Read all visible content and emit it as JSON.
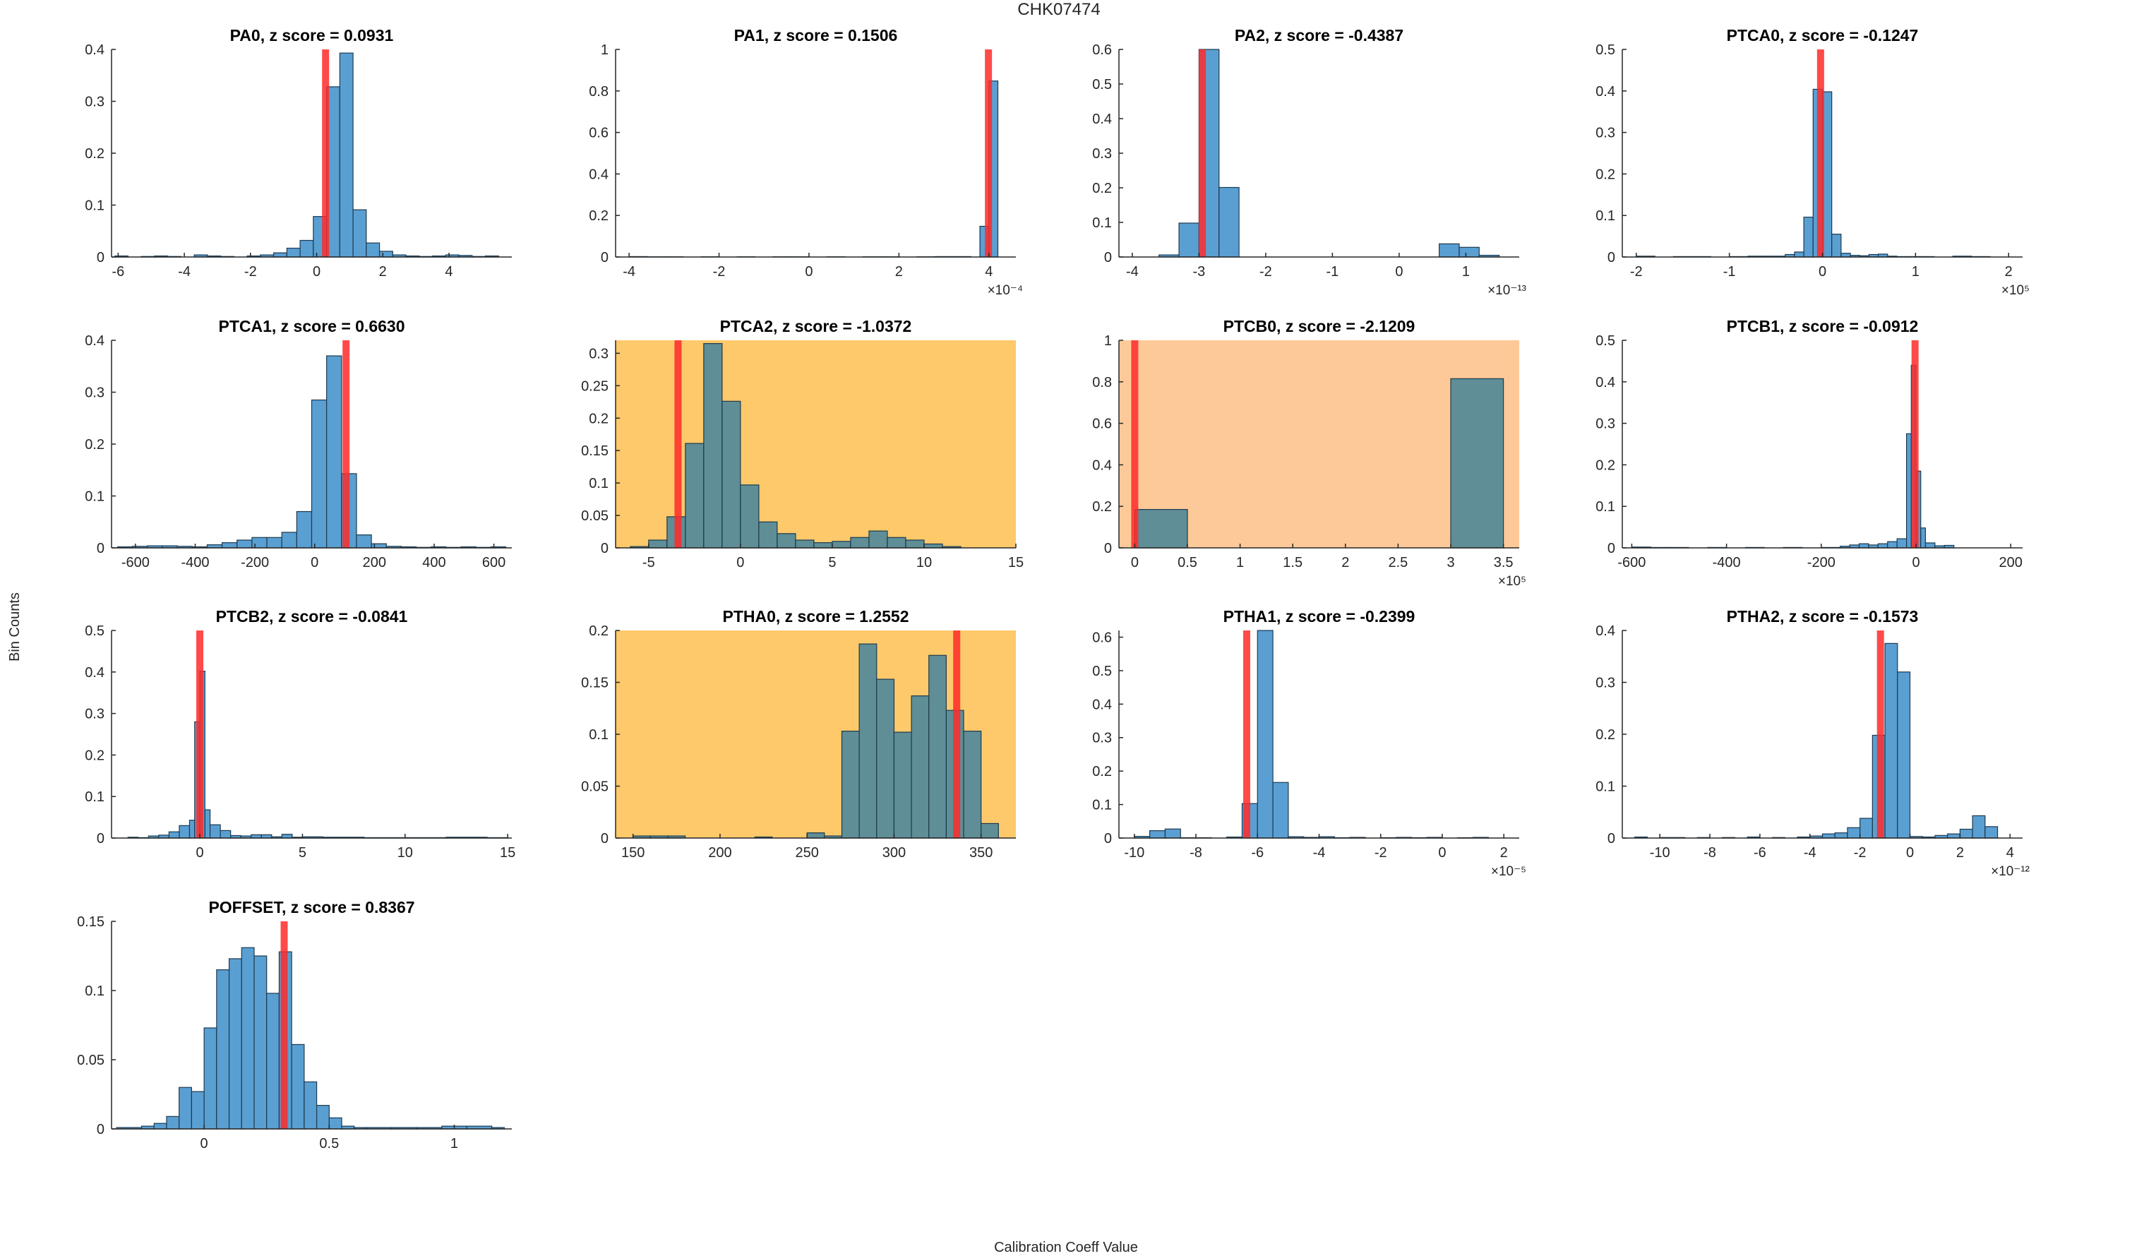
{
  "figure": {
    "title": "CHK07474",
    "xlabel": "Calibration Coeff Value",
    "ylabel": "Bin Counts"
  },
  "colors": {
    "bar_fill": "#5a9fd2",
    "bar_fill_flagged": "#5f8e96",
    "bar_edge": "#1c3a4f",
    "marker": "#ff2a2a",
    "bg_warn": "#fdc96a",
    "bg_alert": "#fec998",
    "axis": "#262626"
  },
  "chart_data": [
    {
      "type": "bar",
      "name": "PA0",
      "title": "PA0, z score = 0.0931",
      "background": "none",
      "xlim": [
        -6.2,
        5.9
      ],
      "ylim": [
        0,
        0.4
      ],
      "xticks": [
        -6,
        -4,
        -2,
        0,
        2,
        4
      ],
      "xtick_labels": [
        "-6",
        "-4",
        "-2",
        "0",
        "2",
        "4"
      ],
      "yticks": [
        0,
        0.1,
        0.2,
        0.3,
        0.4
      ],
      "ytick_labels": [
        "0",
        "0.1",
        "0.2",
        "0.3",
        "0.4"
      ],
      "x_multiplier": null,
      "bin_edges": [
        -6.1,
        -5.7,
        -5.3,
        -4.9,
        -4.5,
        -4.1,
        -3.7,
        -3.3,
        -2.9,
        -2.5,
        -2.1,
        -1.7,
        -1.3,
        -0.9,
        -0.5,
        -0.1,
        0.3,
        0.7,
        1.1,
        1.5,
        1.9,
        2.3,
        2.7,
        3.1,
        3.5,
        3.9,
        4.3,
        4.7,
        5.1,
        5.5
      ],
      "counts": [
        0.002,
        0,
        0.001,
        0.002,
        0.001,
        0,
        0.004,
        0.002,
        0.001,
        0,
        0.002,
        0.004,
        0.008,
        0.017,
        0.032,
        0.078,
        0.328,
        0.393,
        0.091,
        0.027,
        0.011,
        0.004,
        0.002,
        0.001,
        0.002,
        0.004,
        0.003,
        0.001,
        0.002
      ],
      "marker": 0.27
    },
    {
      "type": "bar",
      "name": "PA1",
      "title": "PA1, z score = 0.1506",
      "background": "none",
      "xlim": [
        -4.3,
        4.6
      ],
      "ylim": [
        0,
        1
      ],
      "xticks": [
        -4,
        -2,
        0,
        2,
        4
      ],
      "xtick_labels": [
        "-4",
        "-2",
        "0",
        "2",
        "4"
      ],
      "yticks": [
        0,
        0.2,
        0.4,
        0.6,
        0.8,
        1
      ],
      "ytick_labels": [
        "0",
        "0.2",
        "0.4",
        "0.6",
        "0.8",
        "1"
      ],
      "x_multiplier": "×10⁻⁴",
      "bin_edges": [
        -4.0,
        -3.6,
        -3.2,
        -2.8,
        -2.4,
        -2.0,
        -1.6,
        -1.2,
        -0.8,
        -0.4,
        0,
        0.4,
        0.8,
        1.2,
        1.6,
        2.0,
        2.4,
        2.8,
        3.2,
        3.6,
        3.8,
        4.0,
        4.2
      ],
      "counts": [
        0.002,
        0.001,
        0.001,
        0,
        0.001,
        0,
        0.001,
        0,
        0.001,
        0.001,
        0,
        0.001,
        0,
        0.001,
        0.001,
        0,
        0.001,
        0.002,
        0.002,
        0,
        0.148,
        0.848
      ],
      "marker": 3.99
    },
    {
      "type": "bar",
      "name": "PA2",
      "title": "PA2, z score = -0.4387",
      "background": "none",
      "xlim": [
        -4.2,
        1.8
      ],
      "ylim": [
        0,
        0.6
      ],
      "xticks": [
        -4,
        -3,
        -2,
        -1,
        0,
        1
      ],
      "xtick_labels": [
        "-4",
        "-3",
        "-2",
        "-1",
        "0",
        "1"
      ],
      "yticks": [
        0,
        0.1,
        0.2,
        0.3,
        0.4,
        0.5,
        0.6
      ],
      "ytick_labels": [
        "0",
        "0.1",
        "0.2",
        "0.3",
        "0.4",
        "0.5",
        "0.6"
      ],
      "x_multiplier": "×10⁻¹³",
      "bin_edges": [
        -3.6,
        -3.3,
        -3.0,
        -2.7,
        -2.4,
        -2.1,
        -1.8,
        -1.5,
        -1.2,
        -0.9,
        -0.6,
        -0.3,
        0,
        0.3,
        0.6,
        0.9,
        1.2,
        1.5
      ],
      "counts": [
        0.006,
        0.098,
        0.628,
        0.201,
        0,
        0,
        0,
        0,
        0,
        0,
        0,
        0,
        0,
        0,
        0.038,
        0.028,
        0.005
      ],
      "marker": -2.95
    },
    {
      "type": "bar",
      "name": "PTCA0",
      "title": "PTCA0, z score = -0.1247",
      "background": "none",
      "xlim": [
        -2.15,
        2.15
      ],
      "ylim": [
        0,
        0.5
      ],
      "xticks": [
        -2,
        -1,
        0,
        1,
        2
      ],
      "xtick_labels": [
        "-2",
        "-1",
        "0",
        "1",
        "2"
      ],
      "yticks": [
        0,
        0.1,
        0.2,
        0.3,
        0.4,
        0.5
      ],
      "ytick_labels": [
        "0",
        "0.1",
        "0.2",
        "0.3",
        "0.4",
        "0.5"
      ],
      "x_multiplier": "×10⁵",
      "bin_edges": [
        -2.0,
        -1.8,
        -1.6,
        -1.4,
        -1.2,
        -1.0,
        -0.8,
        -0.6,
        -0.4,
        -0.3,
        -0.2,
        -0.1,
        0,
        0.1,
        0.2,
        0.3,
        0.4,
        0.5,
        0.6,
        0.7,
        0.8,
        1.0,
        1.2,
        1.4,
        1.6,
        1.8,
        2.0
      ],
      "counts": [
        0.002,
        0,
        0.001,
        0.001,
        0,
        0.001,
        0.002,
        0.002,
        0.006,
        0.012,
        0.096,
        0.404,
        0.398,
        0.055,
        0.009,
        0.004,
        0.003,
        0.006,
        0.007,
        0.002,
        0.001,
        0.001,
        0,
        0.002,
        0.001,
        0
      ],
      "marker": -0.02
    },
    {
      "type": "bar",
      "name": "PTCA1",
      "title": "PTCA1, z score = 0.6630",
      "background": "none",
      "xlim": [
        -680,
        660
      ],
      "ylim": [
        0,
        0.4
      ],
      "xticks": [
        -600,
        -400,
        -200,
        0,
        200,
        400,
        600
      ],
      "xtick_labels": [
        "-600",
        "-400",
        "-200",
        "0",
        "200",
        "400",
        "600"
      ],
      "yticks": [
        0,
        0.1,
        0.2,
        0.3,
        0.4
      ],
      "ytick_labels": [
        "0",
        "0.1",
        "0.2",
        "0.3",
        "0.4"
      ],
      "x_multiplier": null,
      "bin_edges": [
        -660,
        -610,
        -560,
        -510,
        -460,
        -410,
        -360,
        -310,
        -260,
        -210,
        -160,
        -110,
        -60,
        -10,
        40,
        90,
        140,
        190,
        240,
        290,
        340,
        390,
        440,
        490,
        540,
        590,
        640
      ],
      "counts": [
        0.002,
        0.003,
        0.004,
        0.004,
        0.003,
        0.002,
        0.006,
        0.01,
        0.015,
        0.02,
        0.02,
        0.03,
        0.07,
        0.285,
        0.37,
        0.143,
        0.025,
        0.008,
        0.003,
        0.002,
        0.001,
        0.002,
        0.001,
        0.002,
        0.001,
        0.002
      ],
      "marker": 105
    },
    {
      "type": "bar",
      "name": "PTCA2",
      "title": "PTCA2, z score = -1.0372",
      "background": "warn",
      "xlim": [
        -6.8,
        15
      ],
      "ylim": [
        0,
        0.32
      ],
      "xticks": [
        -5,
        0,
        5,
        10,
        15
      ],
      "xtick_labels": [
        "-5",
        "0",
        "5",
        "10",
        "15"
      ],
      "yticks": [
        0,
        0.05,
        0.1,
        0.15,
        0.2,
        0.25,
        0.3
      ],
      "ytick_labels": [
        "0",
        "0.05",
        "0.1",
        "0.15",
        "0.2",
        "0.25",
        "0.3"
      ],
      "x_multiplier": null,
      "bin_edges": [
        -6,
        -5,
        -4,
        -3,
        -2,
        -1,
        0,
        1,
        2,
        3,
        4,
        5,
        6,
        7,
        8,
        9,
        10,
        11,
        12
      ],
      "counts": [
        0.002,
        0.012,
        0.048,
        0.161,
        0.315,
        0.226,
        0.097,
        0.04,
        0.022,
        0.012,
        0.008,
        0.01,
        0.016,
        0.026,
        0.016,
        0.012,
        0.006,
        0.002
      ],
      "marker": -3.4
    },
    {
      "type": "bar",
      "name": "PTCB0",
      "title": "PTCB0, z score = -2.1209",
      "background": "alert",
      "xlim": [
        -0.15,
        3.65
      ],
      "ylim": [
        0,
        1
      ],
      "xticks": [
        0,
        0.5,
        1,
        1.5,
        2,
        2.5,
        3,
        3.5
      ],
      "xtick_labels": [
        "0",
        "0.5",
        "1",
        "1.5",
        "2",
        "2.5",
        "3",
        "3.5"
      ],
      "yticks": [
        0,
        0.2,
        0.4,
        0.6,
        0.8,
        1
      ],
      "ytick_labels": [
        "0",
        "0.2",
        "0.4",
        "0.6",
        "0.8",
        "1"
      ],
      "x_multiplier": "×10⁵",
      "bin_edges": [
        0,
        0.5,
        1.0,
        1.5,
        2.0,
        2.5,
        3.0,
        3.5
      ],
      "counts": [
        0.185,
        0,
        0,
        0,
        0,
        0,
        0.815
      ],
      "marker": 0.0
    },
    {
      "type": "bar",
      "name": "PTCB1",
      "title": "PTCB1, z score = -0.0912",
      "background": "none",
      "xlim": [
        -620,
        225
      ],
      "ylim": [
        0,
        0.5
      ],
      "xticks": [
        -600,
        -400,
        -200,
        0,
        200
      ],
      "xtick_labels": [
        "-600",
        "-400",
        "-200",
        "0",
        "200"
      ],
      "yticks": [
        0,
        0.1,
        0.2,
        0.3,
        0.4,
        0.5
      ],
      "ytick_labels": [
        "0",
        "0.1",
        "0.2",
        "0.3",
        "0.4",
        "0.5"
      ],
      "x_multiplier": null,
      "bin_edges": [
        -600,
        -560,
        -520,
        -480,
        -440,
        -400,
        -360,
        -320,
        -280,
        -240,
        -200,
        -160,
        -140,
        -120,
        -100,
        -80,
        -60,
        -40,
        -20,
        -10,
        0,
        10,
        20,
        40,
        60,
        80,
        100
      ],
      "counts": [
        0.002,
        0.001,
        0.001,
        0,
        0.001,
        0,
        0.001,
        0,
        0.001,
        0,
        0.001,
        0.004,
        0.007,
        0.01,
        0.007,
        0.01,
        0.015,
        0.022,
        0.275,
        0.44,
        0.185,
        0.048,
        0.012,
        0.005,
        0.006,
        0
      ],
      "marker": -2
    },
    {
      "type": "bar",
      "name": "PTCB2",
      "title": "PTCB2, z score = -0.0841",
      "background": "none",
      "xlim": [
        -4.3,
        15.2
      ],
      "ylim": [
        0,
        0.5
      ],
      "xticks": [
        0,
        5,
        10,
        15
      ],
      "xtick_labels": [
        "0",
        "5",
        "10",
        "15"
      ],
      "yticks": [
        0,
        0.1,
        0.2,
        0.3,
        0.4,
        0.5
      ],
      "ytick_labels": [
        "0",
        "0.1",
        "0.2",
        "0.3",
        "0.4",
        "0.5"
      ],
      "x_multiplier": null,
      "bin_edges": [
        -3.5,
        -3,
        -2.5,
        -2,
        -1.5,
        -1,
        -0.5,
        -0.25,
        0,
        0.25,
        0.5,
        1,
        1.5,
        2,
        2.5,
        3,
        3.5,
        4,
        4.5,
        5,
        6,
        8,
        10,
        12,
        14,
        15
      ],
      "counts": [
        0.002,
        0.001,
        0.005,
        0.007,
        0.015,
        0.03,
        0.043,
        0.28,
        0.402,
        0.068,
        0.032,
        0.018,
        0.006,
        0.005,
        0.008,
        0.008,
        0.003,
        0.009,
        0.002,
        0.003,
        0.002,
        0.001,
        0.001,
        0.002,
        0.001
      ],
      "marker": 0.0
    },
    {
      "type": "bar",
      "name": "PTHA0",
      "title": "PTHA0, z score = 1.2552",
      "background": "warn",
      "xlim": [
        140,
        370
      ],
      "ylim": [
        0,
        0.2
      ],
      "xticks": [
        150,
        200,
        250,
        300,
        350
      ],
      "xtick_labels": [
        "150",
        "200",
        "250",
        "300",
        "350"
      ],
      "yticks": [
        0,
        0.05,
        0.1,
        0.15,
        0.2
      ],
      "ytick_labels": [
        "0",
        "0.05",
        "0.1",
        "0.15",
        "0.2"
      ],
      "x_multiplier": null,
      "bin_edges": [
        150,
        160,
        170,
        180,
        190,
        200,
        210,
        220,
        230,
        240,
        250,
        260,
        270,
        280,
        290,
        300,
        310,
        320,
        330,
        340,
        350,
        360
      ],
      "counts": [
        0.002,
        0.002,
        0.002,
        0,
        0,
        0,
        0,
        0.001,
        0,
        0,
        0.005,
        0.002,
        0.103,
        0.187,
        0.153,
        0.102,
        0.137,
        0.176,
        0.123,
        0.103,
        0.014
      ],
      "marker": 336
    },
    {
      "type": "bar",
      "name": "PTHA1",
      "title": "PTHA1, z score = -0.2399",
      "background": "none",
      "xlim": [
        -10.5,
        2.5
      ],
      "ylim": [
        0,
        0.62
      ],
      "xticks": [
        -10,
        -8,
        -6,
        -4,
        -2,
        0,
        2
      ],
      "xtick_labels": [
        "-10",
        "-8",
        "-6",
        "-4",
        "-2",
        "0",
        "2"
      ],
      "yticks": [
        0,
        0.1,
        0.2,
        0.3,
        0.4,
        0.5,
        0.6
      ],
      "ytick_labels": [
        "0",
        "0.1",
        "0.2",
        "0.3",
        "0.4",
        "0.5",
        "0.6"
      ],
      "x_multiplier": "×10⁻⁵",
      "bin_edges": [
        -10.0,
        -9.5,
        -9.0,
        -8.5,
        -8.0,
        -7.5,
        -7.0,
        -6.5,
        -6.0,
        -5.5,
        -5.0,
        -4.5,
        -4.0,
        -3.5,
        -3.0,
        -2.5,
        -2.0,
        -1.5,
        -1.0,
        -0.5,
        0,
        0.5,
        1.0,
        1.5
      ],
      "counts": [
        0.005,
        0.022,
        0.027,
        0.001,
        0.001,
        0,
        0.003,
        0.103,
        0.63,
        0.166,
        0.004,
        0.002,
        0.004,
        0.001,
        0.002,
        0,
        0.001,
        0.002,
        0.001,
        0.002,
        0,
        0.001,
        0.002
      ],
      "marker": -6.35
    },
    {
      "type": "bar",
      "name": "PTHA2",
      "title": "PTHA2, z score = -0.1573",
      "background": "none",
      "xlim": [
        -11.5,
        4.5
      ],
      "ylim": [
        0,
        0.4
      ],
      "xticks": [
        -10,
        -8,
        -6,
        -4,
        -2,
        0,
        2,
        4
      ],
      "xtick_labels": [
        "-10",
        "-8",
        "-6",
        "-4",
        "-2",
        "0",
        "2",
        "4"
      ],
      "yticks": [
        0,
        0.1,
        0.2,
        0.3,
        0.4
      ],
      "ytick_labels": [
        "0",
        "0.1",
        "0.2",
        "0.3",
        "0.4"
      ],
      "x_multiplier": "×10⁻¹²",
      "bin_edges": [
        -11,
        -10.5,
        -10,
        -9.5,
        -9,
        -8.5,
        -8,
        -7.5,
        -7,
        -6.5,
        -6,
        -5.5,
        -5,
        -4.5,
        -4,
        -3.5,
        -3,
        -2.5,
        -2,
        -1.5,
        -1,
        -0.5,
        0,
        0.5,
        1,
        1.5,
        2,
        2.5,
        3,
        3.5
      ],
      "counts": [
        0.002,
        0,
        0.001,
        0.001,
        0,
        0.001,
        0,
        0.001,
        0,
        0.002,
        0,
        0.001,
        0,
        0.002,
        0.004,
        0.008,
        0.01,
        0.02,
        0.038,
        0.198,
        0.375,
        0.32,
        0.003,
        0.002,
        0.005,
        0.008,
        0.017,
        0.043,
        0.022
      ],
      "marker": -1.18
    },
    {
      "type": "bar",
      "name": "POFFSET",
      "title": "POFFSET, z score = 0.8367",
      "background": "none",
      "xlim": [
        -0.37,
        1.23
      ],
      "ylim": [
        0,
        0.15
      ],
      "xticks": [
        0,
        0.5,
        1
      ],
      "xtick_labels": [
        "0",
        "0.5",
        "1"
      ],
      "yticks": [
        0,
        0.05,
        0.1,
        0.15
      ],
      "ytick_labels": [
        "0",
        "0.05",
        "0.1",
        "0.15"
      ],
      "x_multiplier": null,
      "bin_edges": [
        -0.35,
        -0.25,
        -0.2,
        -0.15,
        -0.1,
        -0.05,
        0,
        0.05,
        0.1,
        0.15,
        0.2,
        0.25,
        0.3,
        0.35,
        0.4,
        0.45,
        0.5,
        0.55,
        0.6,
        0.65,
        0.75,
        0.85,
        0.95,
        1.05,
        1.15,
        1.2
      ],
      "counts": [
        0.001,
        0.002,
        0.004,
        0.009,
        0.03,
        0.027,
        0.073,
        0.115,
        0.123,
        0.131,
        0.125,
        0.098,
        0.128,
        0.061,
        0.034,
        0.017,
        0.008,
        0.002,
        0.001,
        0.001,
        0.001,
        0.001,
        0.002,
        0.002,
        0.001
      ],
      "marker": 0.32
    }
  ]
}
